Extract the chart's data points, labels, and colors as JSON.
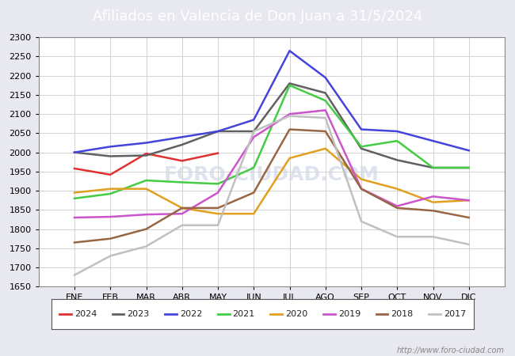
{
  "title": "Afiliados en Valencia de Don Juan a 31/5/2024",
  "title_bg": "#4a72c4",
  "title_color": "white",
  "months": [
    "ENE",
    "FEB",
    "MAR",
    "ABR",
    "MAY",
    "JUN",
    "JUL",
    "AGO",
    "SEP",
    "OCT",
    "NOV",
    "DIC"
  ],
  "ylim": [
    1650,
    2300
  ],
  "yticks": [
    1650,
    1700,
    1750,
    1800,
    1850,
    1900,
    1950,
    2000,
    2050,
    2100,
    2150,
    2200,
    2250,
    2300
  ],
  "series_order": [
    "2024",
    "2023",
    "2022",
    "2021",
    "2020",
    "2019",
    "2018",
    "2017"
  ],
  "series": {
    "2024": {
      "color": "#e03030",
      "lw": 1.8,
      "data": [
        1958,
        1942,
        1997,
        1978,
        1998,
        null,
        null,
        null,
        null,
        null,
        null,
        null
      ]
    },
    "2023": {
      "color": "#606060",
      "lw": 1.8,
      "data": [
        2000,
        1990,
        1992,
        2020,
        2055,
        2055,
        2180,
        2155,
        2010,
        1980,
        1960,
        1960
      ]
    },
    "2022": {
      "color": "#4444dd",
      "lw": 1.8,
      "data": [
        2000,
        2015,
        2025,
        2040,
        2055,
        2085,
        2265,
        2195,
        2060,
        2055,
        2030,
        2005
      ]
    },
    "2021": {
      "color": "#44cc44",
      "lw": 1.8,
      "data": [
        1880,
        1892,
        1927,
        1922,
        1918,
        1960,
        2175,
        2135,
        2015,
        2030,
        1960,
        1960
      ]
    },
    "2020": {
      "color": "#e0a020",
      "lw": 1.8,
      "data": [
        1895,
        1905,
        1905,
        1855,
        1840,
        1840,
        1985,
        2010,
        1930,
        1905,
        1870,
        1875
      ]
    },
    "2019": {
      "color": "#cc55cc",
      "lw": 1.8,
      "data": [
        1830,
        1832,
        1838,
        1840,
        1895,
        2040,
        2100,
        2110,
        1905,
        1860,
        1885,
        1875
      ]
    },
    "2018": {
      "color": "#996644",
      "lw": 1.8,
      "data": [
        1765,
        1775,
        1800,
        1855,
        1855,
        1895,
        2060,
        2055,
        1905,
        1855,
        1848,
        1830
      ]
    },
    "2017": {
      "color": "#c0c0c0",
      "lw": 1.8,
      "data": [
        1680,
        1730,
        1755,
        1810,
        1810,
        2055,
        2095,
        2090,
        1820,
        1780,
        1780,
        1760
      ]
    }
  },
  "watermark": "http://www.foro-ciudad.com",
  "watermark_center": "FORO-CIUDAD.COM",
  "fig_bg": "#e8e8f0",
  "plot_bg": "#ffffff",
  "grid_color": "#cccccc",
  "title_fontsize": 13
}
